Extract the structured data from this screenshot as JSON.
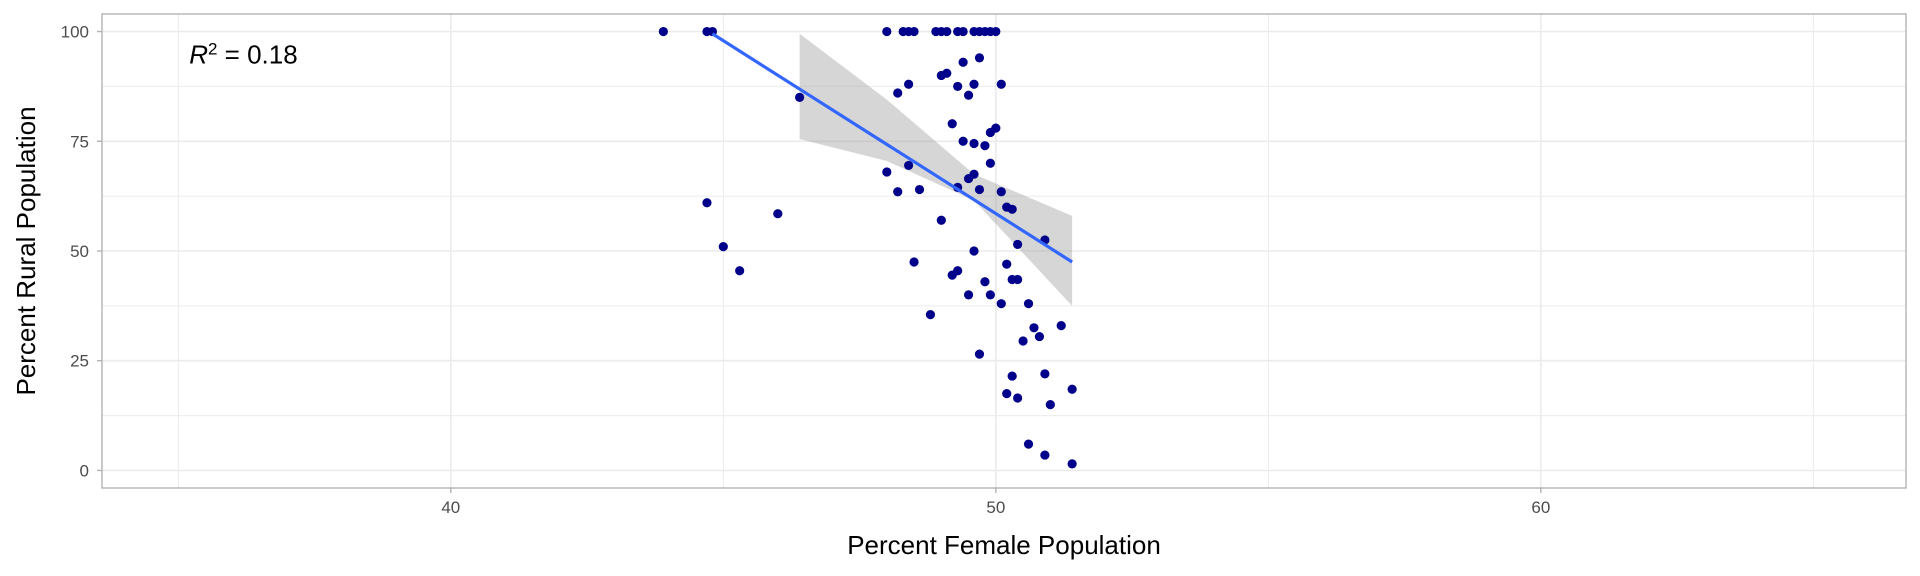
{
  "chart_data": {
    "type": "scatter",
    "xlabel": "Percent Female Population",
    "ylabel": "Percent Rural Population",
    "xlim": [
      33.6,
      66.7
    ],
    "ylim": [
      -4,
      104
    ],
    "x_ticks": [
      40,
      50,
      60
    ],
    "y_ticks": [
      0,
      25,
      50,
      75,
      100
    ],
    "x_minor_ticks": [
      35,
      45,
      55,
      65
    ],
    "y_minor_ticks": [
      12.5,
      37.5,
      62.5,
      87.5
    ],
    "grid": true,
    "annotation": {
      "prefix": "R",
      "superscript": "2",
      "suffix": " = 0.18",
      "x": 35.2,
      "y": 93
    },
    "colors": {
      "points": "#00008B",
      "line": "#3366FF",
      "ribbon": "#999999",
      "grid": "#EBEBEB",
      "panel_border": "#B3B3B3"
    },
    "points": [
      [
        43.9,
        100
      ],
      [
        44.7,
        100
      ],
      [
        44.8,
        100
      ],
      [
        44.7,
        61
      ],
      [
        45.0,
        51
      ],
      [
        45.3,
        45.5
      ],
      [
        46.0,
        58.5
      ],
      [
        46.4,
        85
      ],
      [
        48.0,
        100
      ],
      [
        48.3,
        100
      ],
      [
        48.4,
        100
      ],
      [
        48.5,
        100
      ],
      [
        48.9,
        100
      ],
      [
        49.0,
        100
      ],
      [
        49.1,
        100
      ],
      [
        49.3,
        100
      ],
      [
        49.4,
        100
      ],
      [
        49.6,
        100
      ],
      [
        49.7,
        100
      ],
      [
        49.8,
        100
      ],
      [
        49.9,
        100
      ],
      [
        50.0,
        100
      ],
      [
        48.2,
        86
      ],
      [
        48.4,
        88
      ],
      [
        49.0,
        90
      ],
      [
        49.1,
        90.5
      ],
      [
        49.3,
        87.5
      ],
      [
        49.5,
        85.5
      ],
      [
        49.6,
        88
      ],
      [
        49.7,
        94
      ],
      [
        49.4,
        93
      ],
      [
        50.1,
        88
      ],
      [
        49.2,
        79
      ],
      [
        49.4,
        75
      ],
      [
        49.6,
        74.5
      ],
      [
        49.8,
        74
      ],
      [
        49.9,
        77
      ],
      [
        50.0,
        78
      ],
      [
        49.9,
        70
      ],
      [
        48.0,
        68
      ],
      [
        48.2,
        63.5
      ],
      [
        48.4,
        69.5
      ],
      [
        48.6,
        64
      ],
      [
        49.3,
        64.5
      ],
      [
        49.5,
        66.5
      ],
      [
        49.6,
        67.5
      ],
      [
        49.7,
        64
      ],
      [
        50.1,
        63.5
      ],
      [
        50.2,
        60
      ],
      [
        50.3,
        59.5
      ],
      [
        50.4,
        51.5
      ],
      [
        50.9,
        52.5
      ],
      [
        48.5,
        47.5
      ],
      [
        48.8,
        35.5
      ],
      [
        49.0,
        57
      ],
      [
        49.2,
        44.5
      ],
      [
        49.3,
        45.5
      ],
      [
        49.5,
        40
      ],
      [
        49.6,
        50
      ],
      [
        49.8,
        43
      ],
      [
        49.9,
        40
      ],
      [
        50.1,
        38
      ],
      [
        50.2,
        47
      ],
      [
        50.3,
        43.5
      ],
      [
        50.4,
        43.5
      ],
      [
        50.6,
        38
      ],
      [
        49.7,
        26.5
      ],
      [
        50.5,
        29.5
      ],
      [
        50.7,
        32.5
      ],
      [
        50.8,
        30.5
      ],
      [
        51.2,
        33
      ],
      [
        50.2,
        17.5
      ],
      [
        50.3,
        21.5
      ],
      [
        50.4,
        16.5
      ],
      [
        50.9,
        22
      ],
      [
        51.0,
        15
      ],
      [
        51.4,
        18.5
      ],
      [
        50.6,
        6
      ],
      [
        50.9,
        3.5
      ],
      [
        51.4,
        1.5
      ]
    ],
    "smooth": {
      "x": [
        44.8,
        51.4
      ],
      "y": [
        99.5,
        47.5
      ],
      "ci_x": [
        46.4,
        48.0,
        49.6,
        51.4
      ],
      "ci_lower": [
        75.5,
        70.5,
        61.5,
        37.5
      ],
      "ci_upper": [
        99.5,
        84.5,
        67.5,
        58
      ]
    }
  }
}
